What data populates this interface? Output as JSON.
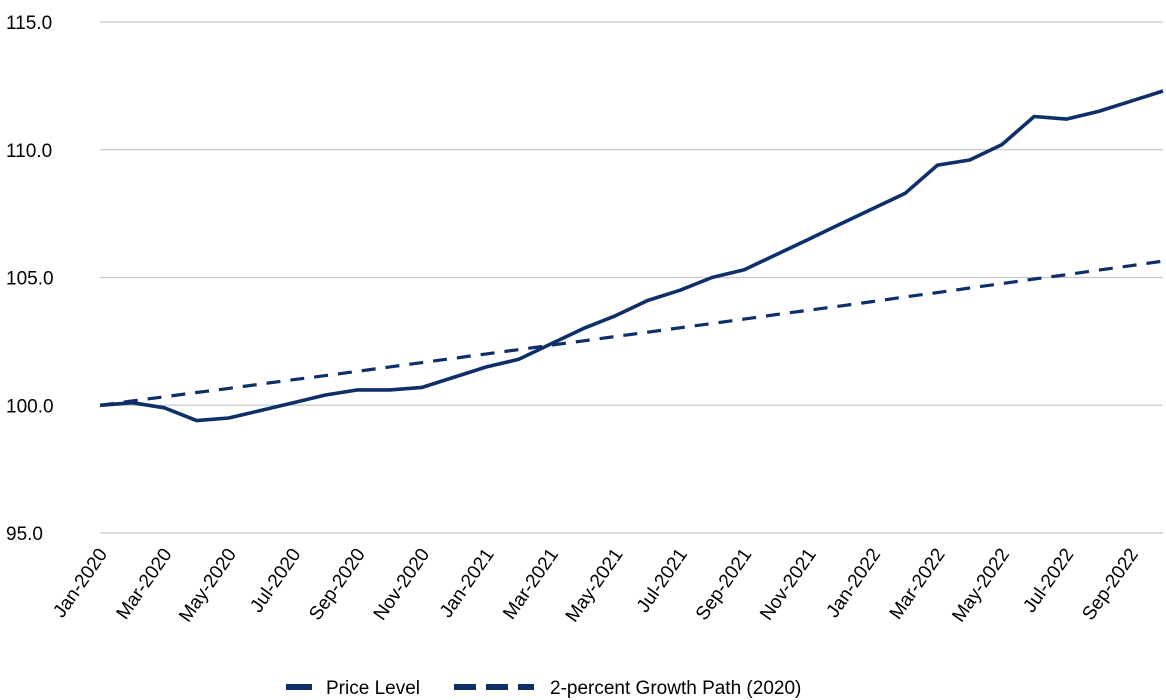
{
  "chart_data": {
    "type": "line",
    "x": [
      "Jan-2020",
      "Feb-2020",
      "Mar-2020",
      "Apr-2020",
      "May-2020",
      "Jun-2020",
      "Jul-2020",
      "Aug-2020",
      "Sep-2020",
      "Oct-2020",
      "Nov-2020",
      "Dec-2020",
      "Jan-2021",
      "Feb-2021",
      "Mar-2021",
      "Apr-2021",
      "May-2021",
      "Jun-2021",
      "Jul-2021",
      "Aug-2021",
      "Sep-2021",
      "Oct-2021",
      "Nov-2021",
      "Dec-2021",
      "Jan-2022",
      "Feb-2022",
      "Mar-2022",
      "Apr-2022",
      "May-2022",
      "Jun-2022",
      "Jul-2022",
      "Aug-2022",
      "Sep-2022",
      "Oct-2022"
    ],
    "x_tick_labels": [
      "Jan-2020",
      "Mar-2020",
      "May-2020",
      "Jul-2020",
      "Sep-2020",
      "Nov-2020",
      "Jan-2021",
      "Mar-2021",
      "May-2021",
      "Jul-2021",
      "Sep-2021",
      "Nov-2021",
      "Jan-2022",
      "Mar-2022",
      "May-2022",
      "Jul-2022",
      "Sep-2022"
    ],
    "y_tick_labels": [
      "95.0",
      "100.0",
      "105.0",
      "110.0",
      "115.0"
    ],
    "ylim": [
      95,
      115
    ],
    "grid": true,
    "legend_position": "bottom",
    "series": [
      {
        "name": "Price Level",
        "style": "solid",
        "color": "#0f2f68",
        "values": [
          100.0,
          100.1,
          99.9,
          99.4,
          99.5,
          99.8,
          100.1,
          100.4,
          100.6,
          100.6,
          100.7,
          101.1,
          101.5,
          101.8,
          102.4,
          103.0,
          103.5,
          104.1,
          104.5,
          105.0,
          105.3,
          105.9,
          106.5,
          107.1,
          107.7,
          108.3,
          109.4,
          109.6,
          110.2,
          111.3,
          111.2,
          111.5,
          111.9,
          112.3
        ]
      },
      {
        "name": "2-percent Growth Path (2020)",
        "style": "dashed",
        "color": "#0f2f68",
        "values": [
          100.0,
          100.17,
          100.33,
          100.5,
          100.66,
          100.83,
          101.0,
          101.16,
          101.33,
          101.5,
          101.67,
          101.84,
          102.01,
          102.18,
          102.35,
          102.52,
          102.69,
          102.86,
          103.03,
          103.2,
          103.37,
          103.55,
          103.72,
          103.89,
          104.06,
          104.24,
          104.41,
          104.59,
          104.76,
          104.94,
          105.11,
          105.29,
          105.46,
          105.64
        ]
      }
    ]
  }
}
